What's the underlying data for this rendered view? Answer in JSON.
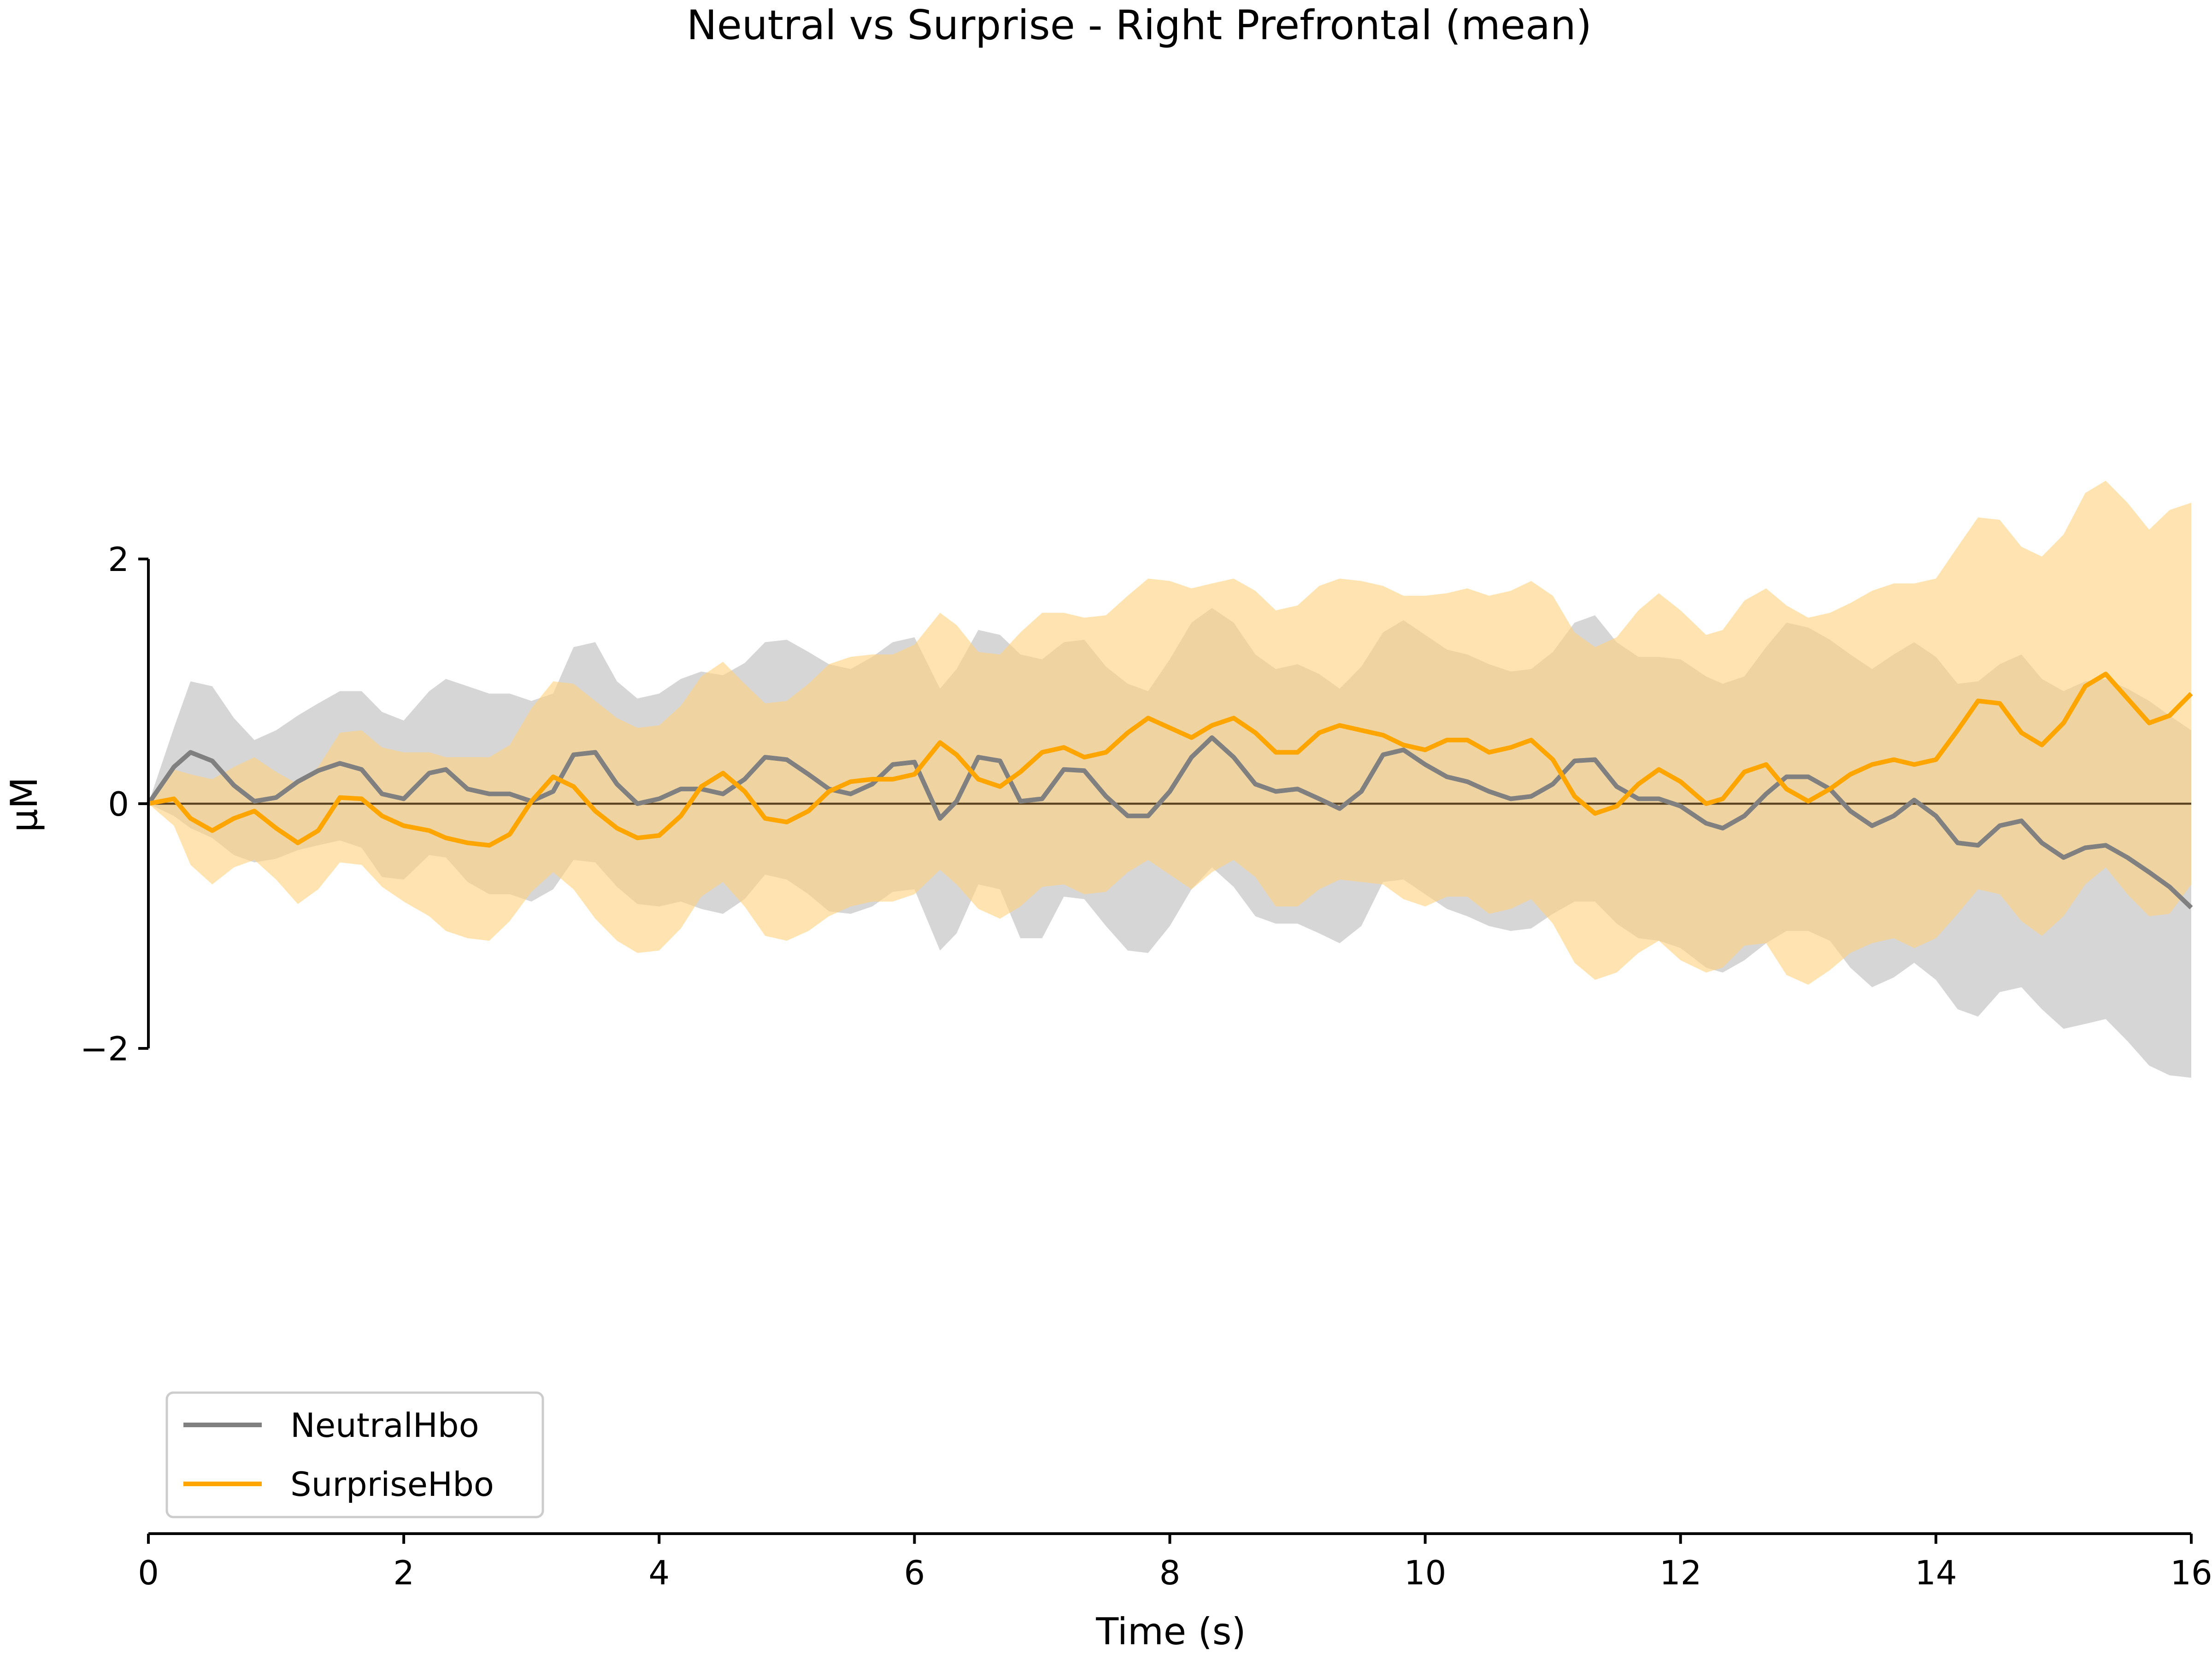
{
  "chart_data": {
    "type": "line",
    "title": "Neutral vs Surprise - Right Prefrontal (mean)",
    "xlabel": "Time (s)",
    "ylabel": "µM",
    "xlim": [
      0,
      16
    ],
    "ylim": [
      -2,
      2
    ],
    "x_ticks": [
      0,
      2,
      4,
      6,
      8,
      10,
      12,
      14,
      16
    ],
    "x_tick_labels": [
      "0",
      "2",
      "4",
      "6",
      "8",
      "10",
      "12",
      "14",
      "16"
    ],
    "y_ticks": [
      2,
      0,
      -2
    ],
    "y_tick_labels": [
      "2",
      "0",
      "−2"
    ],
    "grid": false,
    "legend_position": "lower-left",
    "zero_line": {
      "y": 0,
      "color": "#5a4322"
    },
    "series": [
      {
        "name": "NeutralHbo",
        "color": "#808080",
        "band_color": "#d6d6d6",
        "x": [
          0,
          0.2,
          0.33,
          0.5,
          0.67,
          0.83,
          1.0,
          1.17,
          1.33,
          1.5,
          1.67,
          1.83,
          2.0,
          2.2,
          2.33,
          2.5,
          2.67,
          2.83,
          3.0,
          3.17,
          3.33,
          3.5,
          3.67,
          3.83,
          4.0,
          4.17,
          4.33,
          4.5,
          4.67,
          4.83,
          5.0,
          5.17,
          5.33,
          5.5,
          5.67,
          5.83,
          6.0,
          6.2,
          6.33,
          6.5,
          6.67,
          6.83,
          7.0,
          7.17,
          7.33,
          7.5,
          7.67,
          7.83,
          8.0,
          8.17,
          8.33,
          8.5,
          8.67,
          8.83,
          9.0,
          9.17,
          9.33,
          9.5,
          9.67,
          9.83,
          10.0,
          10.17,
          10.33,
          10.5,
          10.67,
          10.83,
          11.0,
          11.17,
          11.33,
          11.5,
          11.67,
          11.83,
          12.0,
          12.2,
          12.33,
          12.5,
          12.67,
          12.83,
          13.0,
          13.17,
          13.33,
          13.5,
          13.67,
          13.83,
          14.0,
          14.17,
          14.33,
          14.5,
          14.67,
          14.83,
          15.0,
          15.17,
          15.33,
          15.5,
          15.67,
          15.83,
          16.0
        ],
        "mean": [
          0.0,
          0.3,
          0.42,
          0.35,
          0.15,
          0.02,
          0.05,
          0.18,
          0.27,
          0.33,
          0.28,
          0.08,
          0.04,
          0.25,
          0.28,
          0.12,
          0.08,
          0.08,
          0.02,
          0.1,
          0.4,
          0.42,
          0.16,
          0.0,
          0.04,
          0.12,
          0.12,
          0.08,
          0.2,
          0.38,
          0.36,
          0.24,
          0.12,
          0.08,
          0.16,
          0.32,
          0.34,
          -0.12,
          0.02,
          0.38,
          0.35,
          0.02,
          0.04,
          0.28,
          0.27,
          0.06,
          -0.1,
          -0.1,
          0.1,
          0.38,
          0.54,
          0.38,
          0.16,
          0.1,
          0.12,
          0.04,
          -0.04,
          0.1,
          0.4,
          0.44,
          0.32,
          0.22,
          0.18,
          0.1,
          0.04,
          0.06,
          0.16,
          0.35,
          0.36,
          0.14,
          0.04,
          0.04,
          -0.02,
          -0.16,
          -0.2,
          -0.1,
          0.08,
          0.22,
          0.22,
          0.12,
          -0.06,
          -0.18,
          -0.1,
          0.03,
          -0.1,
          -0.32,
          -0.34,
          -0.18,
          -0.14,
          -0.32,
          -0.44,
          -0.36,
          -0.34,
          -0.44,
          -0.56,
          -0.68,
          -0.85
        ],
        "upper": [
          0.0,
          0.62,
          1.0,
          0.96,
          0.7,
          0.52,
          0.6,
          0.72,
          0.82,
          0.92,
          0.92,
          0.75,
          0.68,
          0.92,
          1.02,
          0.96,
          0.9,
          0.9,
          0.84,
          0.9,
          1.28,
          1.32,
          1.0,
          0.86,
          0.9,
          1.02,
          1.08,
          1.05,
          1.15,
          1.32,
          1.34,
          1.24,
          1.14,
          1.1,
          1.2,
          1.32,
          1.36,
          0.94,
          1.1,
          1.42,
          1.38,
          1.22,
          1.18,
          1.32,
          1.34,
          1.12,
          0.98,
          0.92,
          1.18,
          1.48,
          1.6,
          1.48,
          1.22,
          1.1,
          1.14,
          1.06,
          0.94,
          1.12,
          1.4,
          1.5,
          1.38,
          1.26,
          1.22,
          1.14,
          1.08,
          1.1,
          1.24,
          1.48,
          1.54,
          1.32,
          1.2,
          1.2,
          1.18,
          1.04,
          0.98,
          1.04,
          1.28,
          1.48,
          1.44,
          1.34,
          1.22,
          1.1,
          1.22,
          1.32,
          1.2,
          0.98,
          1.0,
          1.14,
          1.22,
          1.02,
          0.92,
          1.0,
          1.02,
          0.94,
          0.84,
          0.72,
          0.6
        ],
        "lower": [
          0.0,
          -0.1,
          -0.2,
          -0.28,
          -0.42,
          -0.48,
          -0.45,
          -0.38,
          -0.34,
          -0.3,
          -0.36,
          -0.6,
          -0.62,
          -0.42,
          -0.44,
          -0.64,
          -0.74,
          -0.74,
          -0.8,
          -0.7,
          -0.46,
          -0.48,
          -0.68,
          -0.82,
          -0.84,
          -0.8,
          -0.86,
          -0.9,
          -0.78,
          -0.58,
          -0.62,
          -0.74,
          -0.88,
          -0.9,
          -0.84,
          -0.72,
          -0.7,
          -1.2,
          -1.06,
          -0.66,
          -0.7,
          -1.1,
          -1.1,
          -0.76,
          -0.78,
          -1.0,
          -1.2,
          -1.22,
          -1.0,
          -0.7,
          -0.52,
          -0.68,
          -0.92,
          -0.98,
          -0.98,
          -1.06,
          -1.14,
          -1.0,
          -0.64,
          -0.62,
          -0.74,
          -0.86,
          -0.92,
          -1.0,
          -1.04,
          -1.02,
          -0.9,
          -0.8,
          -0.8,
          -0.98,
          -1.1,
          -1.12,
          -1.18,
          -1.34,
          -1.38,
          -1.28,
          -1.14,
          -1.04,
          -1.04,
          -1.12,
          -1.34,
          -1.5,
          -1.42,
          -1.3,
          -1.44,
          -1.68,
          -1.74,
          -1.54,
          -1.5,
          -1.68,
          -1.84,
          -1.8,
          -1.76,
          -1.94,
          -2.14,
          -2.22,
          -2.24
        ]
      },
      {
        "name": "SurpriseHbo",
        "color": "#ffa500",
        "band_color": "#ffd27f",
        "band_opacity": 0.6,
        "x": [
          0,
          0.2,
          0.33,
          0.5,
          0.67,
          0.83,
          1.0,
          1.17,
          1.33,
          1.5,
          1.67,
          1.83,
          2.0,
          2.2,
          2.33,
          2.5,
          2.67,
          2.83,
          3.0,
          3.17,
          3.33,
          3.5,
          3.67,
          3.83,
          4.0,
          4.17,
          4.33,
          4.5,
          4.67,
          4.83,
          5.0,
          5.17,
          5.33,
          5.5,
          5.67,
          5.83,
          6.0,
          6.2,
          6.33,
          6.5,
          6.67,
          6.83,
          7.0,
          7.17,
          7.33,
          7.5,
          7.67,
          7.83,
          8.0,
          8.17,
          8.33,
          8.5,
          8.67,
          8.83,
          9.0,
          9.17,
          9.33,
          9.5,
          9.67,
          9.83,
          10.0,
          10.17,
          10.33,
          10.5,
          10.67,
          10.83,
          11.0,
          11.17,
          11.33,
          11.5,
          11.67,
          11.83,
          12.0,
          12.2,
          12.33,
          12.5,
          12.67,
          12.83,
          13.0,
          13.17,
          13.33,
          13.5,
          13.67,
          13.83,
          14.0,
          14.17,
          14.33,
          14.5,
          14.67,
          14.83,
          15.0,
          15.17,
          15.33,
          15.5,
          15.67,
          15.83,
          16.0
        ],
        "mean": [
          0.0,
          0.04,
          -0.12,
          -0.22,
          -0.12,
          -0.06,
          -0.2,
          -0.32,
          -0.22,
          0.05,
          0.04,
          -0.1,
          -0.18,
          -0.22,
          -0.28,
          -0.32,
          -0.34,
          -0.25,
          0.02,
          0.22,
          0.14,
          -0.06,
          -0.2,
          -0.28,
          -0.26,
          -0.1,
          0.14,
          0.25,
          0.1,
          -0.12,
          -0.15,
          -0.06,
          0.1,
          0.18,
          0.2,
          0.2,
          0.24,
          0.5,
          0.4,
          0.2,
          0.14,
          0.26,
          0.42,
          0.46,
          0.38,
          0.42,
          0.58,
          0.7,
          0.62,
          0.54,
          0.64,
          0.7,
          0.58,
          0.42,
          0.42,
          0.58,
          0.64,
          0.6,
          0.56,
          0.48,
          0.44,
          0.52,
          0.52,
          0.42,
          0.46,
          0.52,
          0.36,
          0.06,
          -0.08,
          -0.02,
          0.16,
          0.28,
          0.18,
          0.0,
          0.04,
          0.26,
          0.32,
          0.12,
          0.02,
          0.12,
          0.24,
          0.32,
          0.36,
          0.32,
          0.36,
          0.6,
          0.84,
          0.82,
          0.58,
          0.48,
          0.66,
          0.96,
          1.06,
          0.86,
          0.66,
          0.72,
          0.9
        ],
        "upper": [
          0.0,
          0.28,
          0.24,
          0.2,
          0.3,
          0.38,
          0.26,
          0.16,
          0.3,
          0.58,
          0.6,
          0.46,
          0.42,
          0.42,
          0.38,
          0.38,
          0.38,
          0.48,
          0.78,
          1.0,
          0.98,
          0.84,
          0.7,
          0.62,
          0.64,
          0.8,
          1.04,
          1.16,
          0.98,
          0.82,
          0.84,
          0.98,
          1.14,
          1.2,
          1.22,
          1.22,
          1.3,
          1.56,
          1.46,
          1.24,
          1.22,
          1.4,
          1.56,
          1.56,
          1.52,
          1.54,
          1.7,
          1.84,
          1.82,
          1.76,
          1.8,
          1.84,
          1.74,
          1.58,
          1.62,
          1.78,
          1.84,
          1.82,
          1.78,
          1.7,
          1.7,
          1.72,
          1.76,
          1.7,
          1.74,
          1.82,
          1.7,
          1.4,
          1.28,
          1.36,
          1.58,
          1.72,
          1.58,
          1.38,
          1.42,
          1.66,
          1.76,
          1.62,
          1.52,
          1.56,
          1.64,
          1.74,
          1.8,
          1.8,
          1.84,
          2.1,
          2.34,
          2.32,
          2.1,
          2.02,
          2.2,
          2.54,
          2.64,
          2.46,
          2.24,
          2.4,
          2.46
        ],
        "lower": [
          0.0,
          -0.18,
          -0.5,
          -0.66,
          -0.52,
          -0.46,
          -0.62,
          -0.82,
          -0.7,
          -0.48,
          -0.5,
          -0.68,
          -0.8,
          -0.92,
          -1.04,
          -1.1,
          -1.12,
          -0.96,
          -0.72,
          -0.56,
          -0.7,
          -0.94,
          -1.12,
          -1.22,
          -1.2,
          -1.02,
          -0.76,
          -0.64,
          -0.84,
          -1.08,
          -1.12,
          -1.04,
          -0.92,
          -0.84,
          -0.8,
          -0.8,
          -0.74,
          -0.54,
          -0.66,
          -0.86,
          -0.94,
          -0.84,
          -0.68,
          -0.66,
          -0.74,
          -0.72,
          -0.56,
          -0.46,
          -0.58,
          -0.7,
          -0.56,
          -0.46,
          -0.6,
          -0.84,
          -0.84,
          -0.7,
          -0.62,
          -0.64,
          -0.66,
          -0.78,
          -0.84,
          -0.76,
          -0.76,
          -0.9,
          -0.86,
          -0.78,
          -0.98,
          -1.3,
          -1.44,
          -1.38,
          -1.22,
          -1.12,
          -1.28,
          -1.38,
          -1.34,
          -1.16,
          -1.14,
          -1.4,
          -1.48,
          -1.36,
          -1.22,
          -1.14,
          -1.1,
          -1.18,
          -1.1,
          -0.9,
          -0.7,
          -0.74,
          -0.96,
          -1.08,
          -0.92,
          -0.66,
          -0.52,
          -0.74,
          -0.92,
          -0.9,
          -0.66
        ]
      }
    ]
  }
}
